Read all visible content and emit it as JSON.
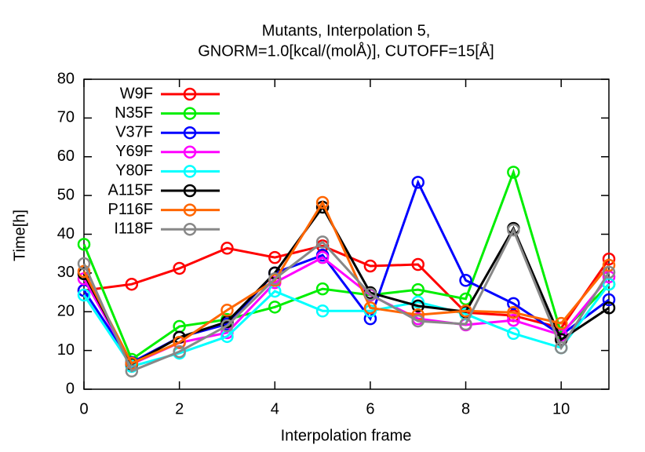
{
  "chart_data": {
    "type": "line",
    "title": "Mutants, Interpolation 5,",
    "subtitle": "GNORM=1.0[kcal/(molÅ)], CUTOFF=15[Å]",
    "x_label": "Interpolation frame",
    "y_label": "Time[h]",
    "x": [
      0,
      1,
      2,
      3,
      4,
      5,
      6,
      7,
      8,
      9,
      10,
      11
    ],
    "xlim": [
      0,
      11
    ],
    "xticks": [
      0,
      2,
      4,
      6,
      8,
      10
    ],
    "ylim": [
      0,
      80
    ],
    "yticks": [
      0,
      10,
      20,
      30,
      40,
      50,
      60,
      70,
      80
    ],
    "legend": "top-left",
    "series": [
      {
        "name": "W9F",
        "color": "#ff0000",
        "values": [
          25.5,
          27.1,
          31.2,
          36.4,
          34,
          37,
          31.8,
          32.2,
          19.8,
          19,
          15.8,
          33.6
        ]
      },
      {
        "name": "N35F",
        "color": "#00ee00",
        "values": [
          37.4,
          7.7,
          16.2,
          18,
          21.2,
          25.9,
          24.3,
          25.7,
          23.3,
          56,
          14.4,
          27.1
        ]
      },
      {
        "name": "V37F",
        "color": "#0000ff",
        "values": [
          25.5,
          6.9,
          13.4,
          16.8,
          30,
          34.6,
          18.2,
          53.4,
          28.1,
          22.1,
          14,
          23.1
        ]
      },
      {
        "name": "Y69F",
        "color": "#ff00ff",
        "values": [
          28.5,
          6.5,
          12,
          14.6,
          27.5,
          34,
          24.3,
          18.2,
          16.6,
          17.8,
          14,
          29
        ]
      },
      {
        "name": "Y80F",
        "color": "#00ffff",
        "values": [
          24.3,
          5.9,
          9.3,
          13.6,
          25.3,
          20.2,
          20.2,
          22.5,
          19.4,
          14.4,
          10.7,
          27.1
        ]
      },
      {
        "name": "A115F",
        "color": "#000000",
        "values": [
          29.8,
          6.5,
          13.4,
          17.4,
          30,
          47,
          24.9,
          21.5,
          20,
          41.5,
          12.8,
          21
        ]
      },
      {
        "name": "P116F",
        "color": "#ff6600",
        "values": [
          30.4,
          6.7,
          12.1,
          20.4,
          28.1,
          48.2,
          21,
          19.2,
          20.2,
          19.8,
          17,
          32
        ]
      },
      {
        "name": "I118F",
        "color": "#888888",
        "values": [
          32.4,
          4.7,
          9.7,
          16.4,
          28.5,
          38,
          24.5,
          17.6,
          16.8,
          41.1,
          10.7,
          30.2
        ]
      }
    ]
  }
}
